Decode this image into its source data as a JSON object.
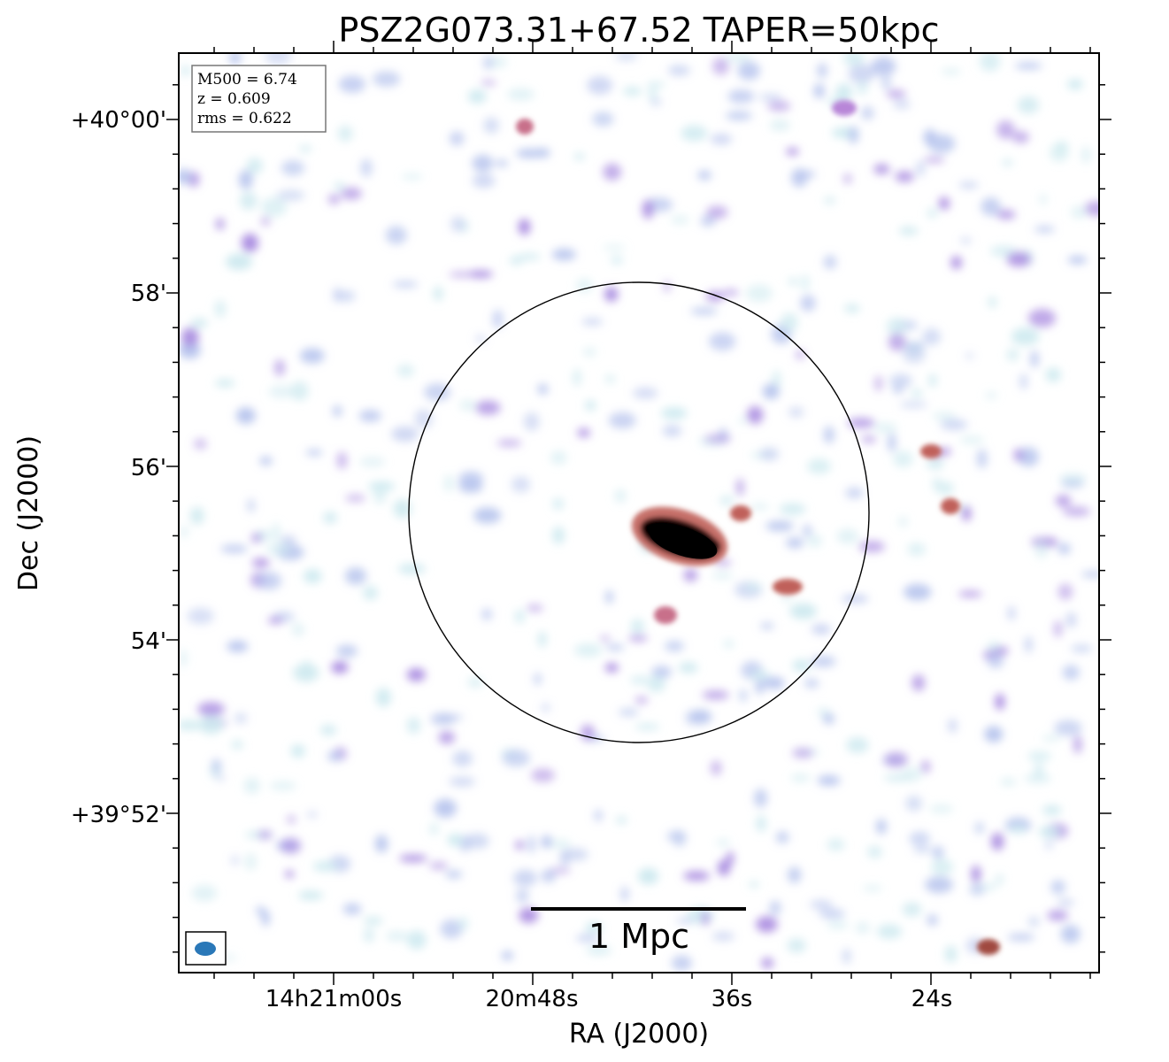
{
  "title": "PSZ2G073.31+67.52 TAPER=50kpc",
  "xlabel": "RA (J2000)",
  "ylabel": "Dec (J2000)",
  "ra_ticks": [
    "14h21m00s",
    "20m48s",
    "36s",
    "24s"
  ],
  "dec_ticks": [
    "+40°00'",
    "58'",
    "56'",
    "54'",
    "+39°52'"
  ],
  "info": {
    "m500": "M500 = 6.74",
    "z": "z = 0.609",
    "rms": "rms = 0.622"
  },
  "scale_bar_label": "1 Mpc",
  "colors": {
    "noise_low": "#cfeaf0",
    "noise_mid": "#b9c6ee",
    "noise_high": "#a88ae0",
    "source_red": "#c0605a",
    "source_core": "#000000",
    "beam": "#2a78b8"
  }
}
